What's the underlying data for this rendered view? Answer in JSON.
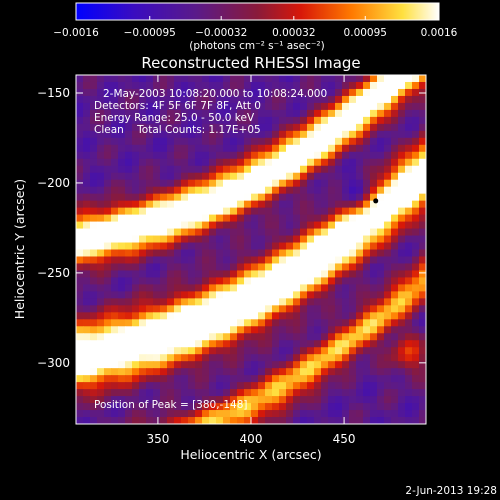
{
  "chart_data": {
    "type": "heatmap",
    "title": "Reconstructed RHESSI Image",
    "xlabel": "Heliocentric X (arcsec)",
    "ylabel": "Heliocentric Y (arcsec)",
    "xlim": [
      306,
      494
    ],
    "ylim": [
      -334,
      -140
    ],
    "x_ticks": [
      {
        "value": 350,
        "label": "350"
      },
      {
        "value": 400,
        "label": "400"
      },
      {
        "value": 450,
        "label": "450"
      }
    ],
    "y_ticks": [
      {
        "value": -150,
        "label": "−150"
      },
      {
        "value": -200,
        "label": "−200"
      },
      {
        "value": -250,
        "label": "−250"
      },
      {
        "value": -300,
        "label": "−300"
      }
    ],
    "colorbar": {
      "range": [
        -0.0016,
        0.0016
      ],
      "ticks": [
        {
          "value": -0.0016,
          "label": "−0.0016"
        },
        {
          "value": -0.00095,
          "label": "−0.00095"
        },
        {
          "value": -0.00032,
          "label": "−0.00032"
        },
        {
          "value": 0.00032,
          "label": "0.00032"
        },
        {
          "value": 0.00095,
          "label": "0.00095"
        },
        {
          "value": 0.0016,
          "label": "0.0016"
        }
      ],
      "unit_label": "(photons cm⁻² s⁻¹ asec⁻²)",
      "colors": [
        "#0000ff",
        "#3a0cc0",
        "#5a1a8a",
        "#8a1a3a",
        "#d81808",
        "#ff7a00",
        "#ffe040",
        "#ffffff"
      ]
    },
    "info_lines": [
      "2-May-2003 10:08:20.000 to 10:08:24.000",
      "Detectors: 4F 5F 6F 7F 8F, Att 0",
      "Energy Range: 25.0 - 50.0 keV",
      "Clean    Total Counts: 1.17E+05"
    ],
    "peak_label": "Position of Peak = [380,-148]",
    "marker": {
      "x": 467,
      "y": -210
    },
    "grid": false
  },
  "footer": {
    "timestamp": "2-Jun-2013 19:28"
  }
}
